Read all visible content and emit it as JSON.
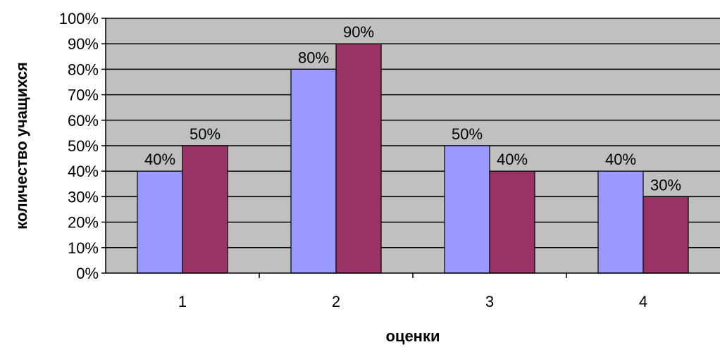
{
  "chart_data": {
    "type": "bar",
    "title": "",
    "xlabel": "оценки",
    "ylabel": "количество учащихся",
    "categories": [
      "1",
      "2",
      "3",
      "4"
    ],
    "series": [
      {
        "values": [
          40,
          80,
          50,
          40
        ],
        "color": "#9999ff"
      },
      {
        "values": [
          50,
          90,
          40,
          30
        ],
        "color": "#993366"
      }
    ],
    "ylim": [
      0,
      100
    ],
    "y_ticks": [
      0,
      10,
      20,
      30,
      40,
      50,
      60,
      70,
      80,
      90,
      100
    ],
    "y_tick_suffix": "%",
    "data_label_suffix": "%",
    "grid": true,
    "plot_background": "#c0c0c0",
    "legend": "none"
  }
}
